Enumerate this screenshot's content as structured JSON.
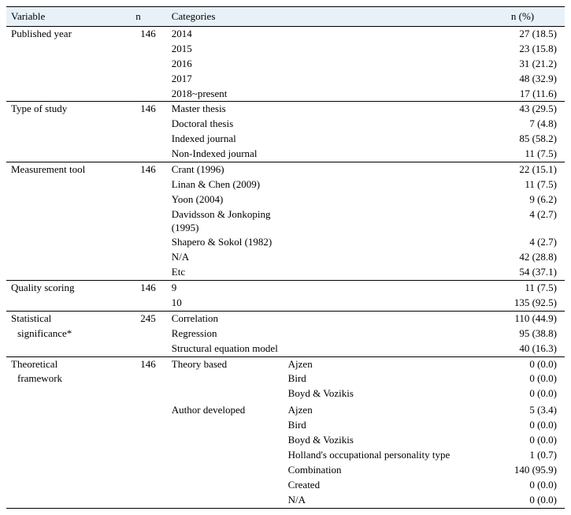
{
  "headers": {
    "variable": "Variable",
    "n": "n",
    "categories": "Categories",
    "pct": "n (%)"
  },
  "groups": [
    {
      "variable": "Published year",
      "n": "146",
      "rows": [
        {
          "cat": "2014",
          "sub": "",
          "pct": "27 (18.5)"
        },
        {
          "cat": "2015",
          "sub": "",
          "pct": "23 (15.8)"
        },
        {
          "cat": "2016",
          "sub": "",
          "pct": "31 (21.2)"
        },
        {
          "cat": "2017",
          "sub": "",
          "pct": "48 (32.9)"
        },
        {
          "cat": "2018~present",
          "sub": "",
          "pct": "17 (11.6)"
        }
      ]
    },
    {
      "variable": "Type of study",
      "n": "146",
      "rows": [
        {
          "cat": "Master thesis",
          "sub": "",
          "pct": "43 (29.5)"
        },
        {
          "cat": "Doctoral thesis",
          "sub": "",
          "pct": "7 (4.8)"
        },
        {
          "cat": "Indexed journal",
          "sub": "",
          "pct": "85 (58.2)"
        },
        {
          "cat": "Non-Indexed journal",
          "sub": "",
          "pct": "11 (7.5)"
        }
      ]
    },
    {
      "variable": "Measurement tool",
      "n": "146",
      "rows": [
        {
          "cat": "Crant (1996)",
          "sub": "",
          "pct": "22 (15.1)"
        },
        {
          "cat": "Linan & Chen (2009)",
          "sub": "",
          "pct": "11 (7.5)"
        },
        {
          "cat": "Yoon (2004)",
          "sub": "",
          "pct": "9 (6.2)"
        },
        {
          "cat": "Davidsson & Jonkoping (1995)",
          "sub": "",
          "pct": "4 (2.7)"
        },
        {
          "cat": "Shapero & Sokol (1982)",
          "sub": "",
          "pct": "4 (2.7)"
        },
        {
          "cat": "N/A",
          "sub": "",
          "pct": "42 (28.8)"
        },
        {
          "cat": "Etc",
          "sub": "",
          "pct": "54 (37.1)"
        }
      ]
    },
    {
      "variable": "Quality scoring",
      "n": "146",
      "rows": [
        {
          "cat": "9",
          "sub": "",
          "pct": "11 (7.5)"
        },
        {
          "cat": "10",
          "sub": "",
          "pct": "135 (92.5)"
        }
      ]
    },
    {
      "variable": "Statistical",
      "variable2": "significance*",
      "n": "245",
      "rows": [
        {
          "cat": "Correlation",
          "sub": "",
          "pct": "110 (44.9)"
        },
        {
          "cat": "Regression",
          "sub": "",
          "pct": "95 (38.8)"
        },
        {
          "cat": "Structural equation model",
          "sub": "",
          "pct": "40 (16.3)"
        }
      ]
    },
    {
      "variable": "Theoretical",
      "variable2": "framework",
      "n": "146",
      "rows": [
        {
          "cat": "Theory based",
          "sub": "Ajzen",
          "pct": "0 (0.0)"
        },
        {
          "cat": "",
          "sub": "Bird",
          "pct": "0 (0.0)"
        },
        {
          "cat": "",
          "sub": "Boyd & Vozikis",
          "pct": "0 (0.0)"
        },
        {
          "cat": "",
          "sub": "",
          "pct": ""
        },
        {
          "cat": "Author developed",
          "sub": "Ajzen",
          "pct": "5 (3.4)"
        },
        {
          "cat": "",
          "sub": "Bird",
          "pct": "0 (0.0)"
        },
        {
          "cat": "",
          "sub": "Boyd & Vozikis",
          "pct": "0 (0.0)"
        },
        {
          "cat": "",
          "sub": "Holland's occupational personality type",
          "pct": "1 (0.7)"
        },
        {
          "cat": "",
          "sub": "Combination",
          "pct": "140 (95.9)"
        },
        {
          "cat": "",
          "sub": "Created",
          "pct": "0 (0.0)"
        },
        {
          "cat": "",
          "sub": "N/A",
          "pct": "0 (0.0)"
        }
      ]
    }
  ]
}
